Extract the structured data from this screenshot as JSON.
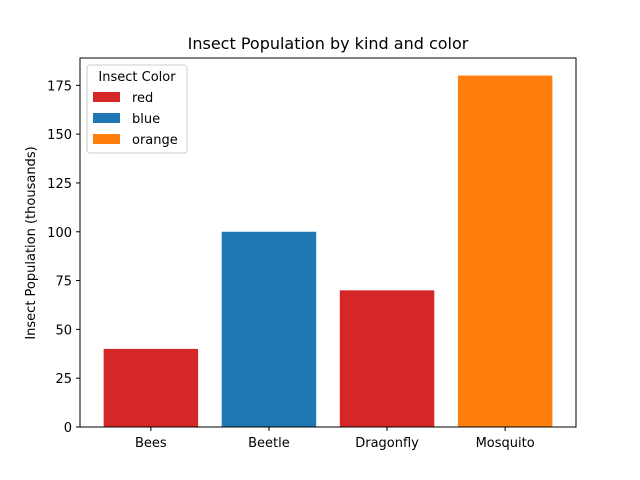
{
  "chart_data": {
    "type": "bar",
    "title": "Insect Population by kind and color",
    "xlabel": "",
    "ylabel": "Insect Population (thousands)",
    "categories": [
      "Bees",
      "Beetle",
      "Dragonfly",
      "Mosquito"
    ],
    "values": [
      40,
      100,
      70,
      180
    ],
    "bar_legend_labels": [
      "red",
      "blue",
      "red",
      "orange"
    ],
    "bar_colors": [
      "#d62728",
      "#1f77b4",
      "#d62728",
      "#ff7f0e"
    ],
    "ylim": [
      0,
      189
    ],
    "yticks": [
      0,
      25,
      50,
      75,
      100,
      125,
      150,
      175
    ],
    "grid": false,
    "legend": {
      "title": "Insect Color",
      "placement": "top-left",
      "entries": [
        {
          "label": "red",
          "color": "#d62728"
        },
        {
          "label": "blue",
          "color": "#1f77b4"
        },
        {
          "label": "orange",
          "color": "#ff7f0e"
        }
      ]
    }
  }
}
